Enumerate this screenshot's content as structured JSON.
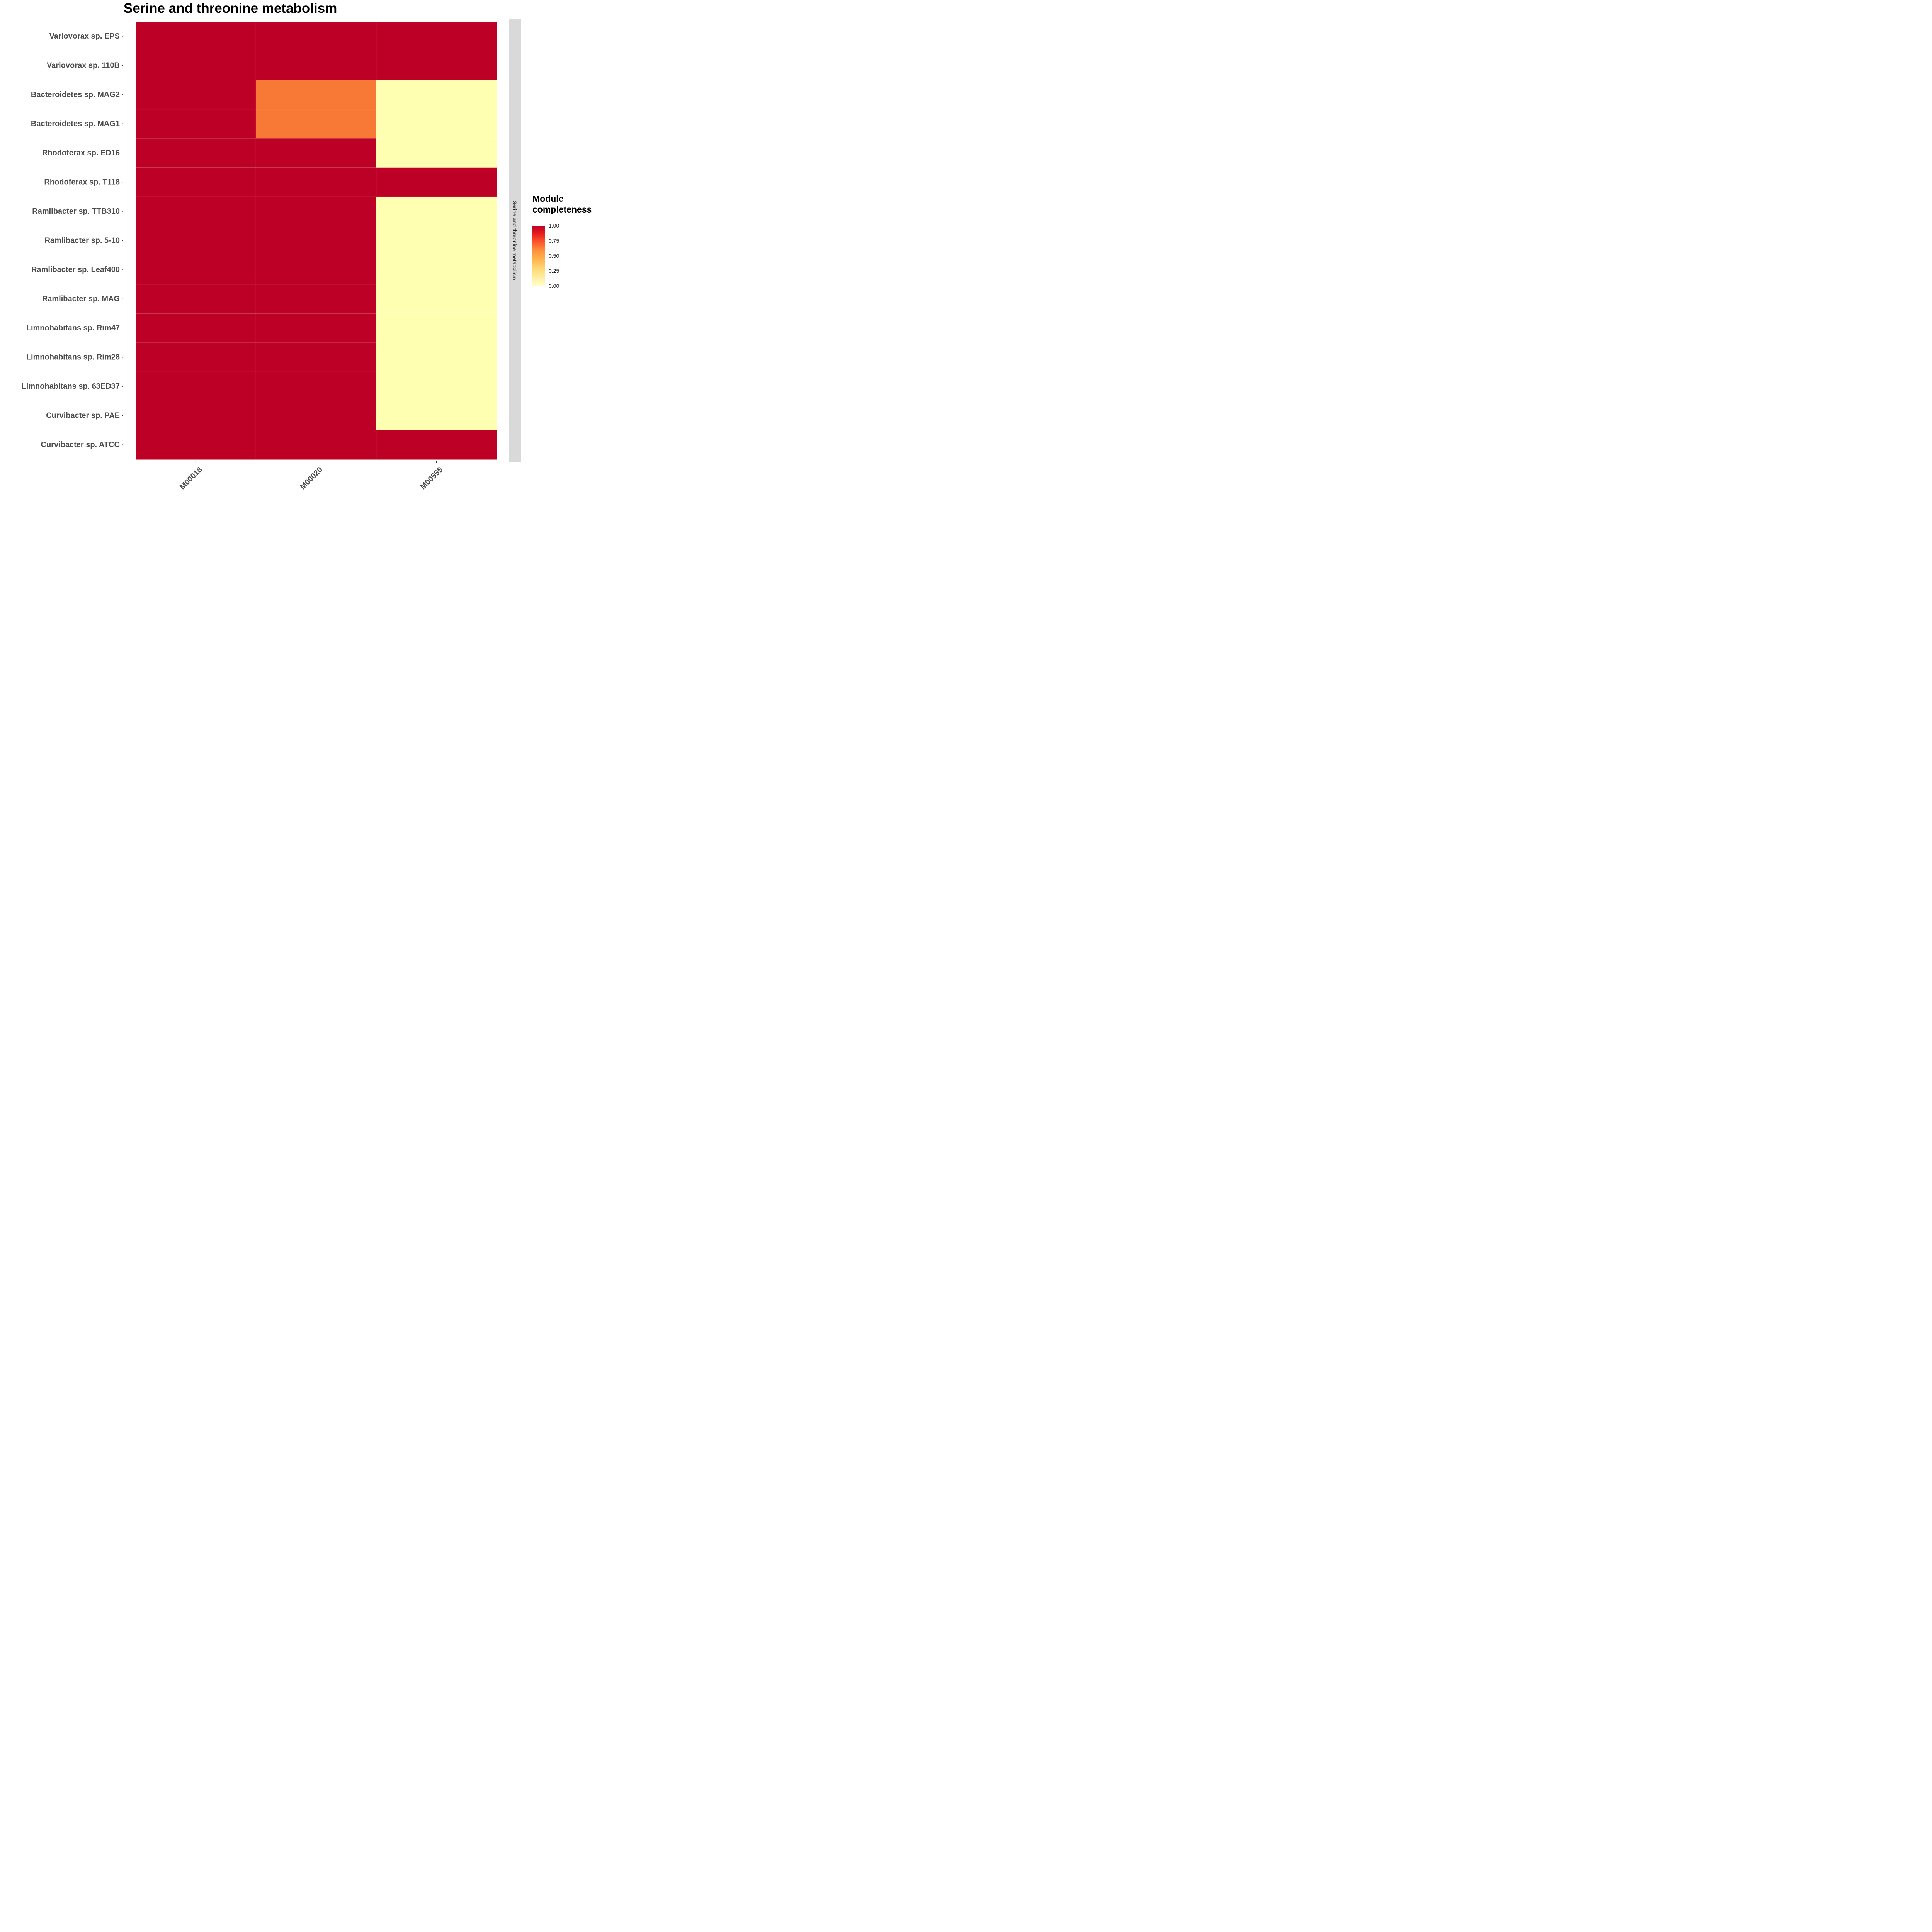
{
  "chart_data": {
    "type": "heatmap",
    "title": "Serine and threonine metabolism",
    "facet_label": "Serine and threonine metabolism",
    "x_categories": [
      "M00018",
      "M00020",
      "M00555"
    ],
    "y_categories": [
      "Variovorax sp. EPS",
      "Variovorax sp. 110B",
      "Bacteroidetes sp. MAG2",
      "Bacteroidetes sp. MAG1",
      "Rhodoferax sp. ED16",
      "Rhodoferax sp. T118",
      "Ramlibacter sp. TTB310",
      "Ramlibacter sp. 5-10",
      "Ramlibacter sp. Leaf400",
      "Ramlibacter sp. MAG",
      "Limnohabitans sp. Rim47",
      "Limnohabitans sp. Rim28",
      "Limnohabitans sp. 63ED37",
      "Curvibacter sp. PAE",
      "Curvibacter sp. ATCC"
    ],
    "values": [
      [
        1.0,
        1.0,
        1.0
      ],
      [
        1.0,
        1.0,
        1.0
      ],
      [
        1.0,
        0.75,
        0.0
      ],
      [
        1.0,
        0.75,
        0.0
      ],
      [
        1.0,
        1.0,
        0.0
      ],
      [
        1.0,
        1.0,
        1.0
      ],
      [
        1.0,
        1.0,
        0.0
      ],
      [
        1.0,
        1.0,
        0.0
      ],
      [
        1.0,
        1.0,
        0.0
      ],
      [
        1.0,
        1.0,
        0.0
      ],
      [
        1.0,
        1.0,
        0.0
      ],
      [
        1.0,
        1.0,
        0.0
      ],
      [
        1.0,
        1.0,
        0.0
      ],
      [
        1.0,
        1.0,
        0.0
      ],
      [
        1.0,
        1.0,
        1.0
      ]
    ],
    "legend": {
      "title": "Module completeness",
      "title_line1": "Module",
      "title_line2": "completeness",
      "ticks": [
        "1.00",
        "0.75",
        "0.50",
        "0.25",
        "0.00"
      ],
      "tick_values": [
        1.0,
        0.75,
        0.5,
        0.25,
        0.0
      ],
      "range": [
        0,
        1
      ],
      "position": "right"
    },
    "colors": {
      "high": "#bd0026",
      "mid": "#f87935",
      "low": "#ffffb2",
      "grid": "#e07a85"
    }
  }
}
